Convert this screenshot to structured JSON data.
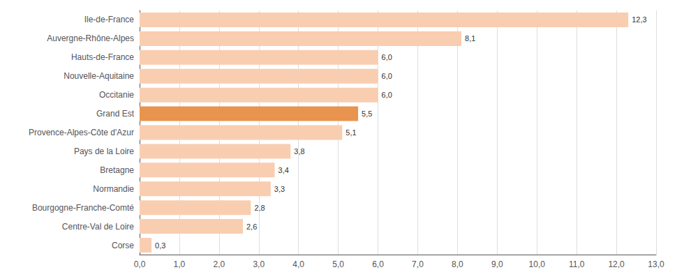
{
  "chart_data": {
    "type": "bar",
    "orientation": "horizontal",
    "categories": [
      "Corse",
      "Centre-Val de Loire",
      "Bourgogne-Franche-Comté",
      "Normandie",
      "Bretagne",
      "Pays de la Loire",
      "Provence-Alpes-Côte d'Azur",
      "Grand Est",
      "Occitanie",
      "Nouvelle-Aquitaine",
      "Hauts-de-France",
      "Auvergne-Rhône-Alpes",
      "Ile-de-France"
    ],
    "values": [
      0.3,
      2.6,
      2.8,
      3.3,
      3.4,
      3.8,
      5.1,
      5.5,
      6.0,
      6.0,
      6.0,
      8.1,
      12.3
    ],
    "value_labels": [
      "0,3",
      "2,6",
      "2,8",
      "3,3",
      "3,4",
      "3,8",
      "5,1",
      "5,5",
      "6,0",
      "6,0",
      "6,0",
      "8,1",
      "12,3"
    ],
    "colors": [
      "#f9cdb0",
      "#f9cdb0",
      "#f9cdb0",
      "#f9cdb0",
      "#f9cdb0",
      "#f9cdb0",
      "#f9cdb0",
      "#e8934e",
      "#f9cdb0",
      "#f9cdb0",
      "#f9cdb0",
      "#f9cdb0",
      "#f9cdb0"
    ],
    "xlim": [
      0,
      13
    ],
    "xticks": [
      {
        "value": 0,
        "label": "0,0"
      },
      {
        "value": 1,
        "label": "1,0"
      },
      {
        "value": 2,
        "label": "2,0"
      },
      {
        "value": 3,
        "label": "3,0"
      },
      {
        "value": 4,
        "label": "4,0"
      },
      {
        "value": 5,
        "label": "5,0"
      },
      {
        "value": 6,
        "label": "6,0"
      },
      {
        "value": 7,
        "label": "7,0"
      },
      {
        "value": 8,
        "label": "8,0"
      },
      {
        "value": 9,
        "label": "9,0"
      },
      {
        "value": 10,
        "label": "10,0"
      },
      {
        "value": 11,
        "label": "11,0"
      },
      {
        "value": 12,
        "label": "12,0"
      },
      {
        "value": 13,
        "label": "13,0"
      }
    ],
    "grid": true,
    "data_labels": true
  }
}
